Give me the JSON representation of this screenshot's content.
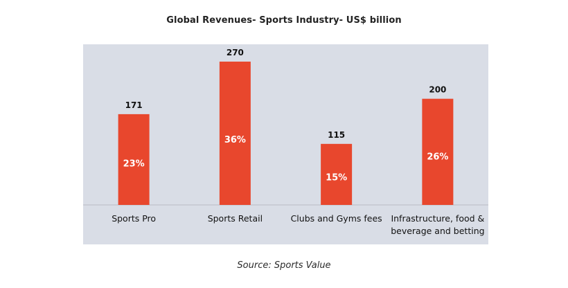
{
  "chart_data": {
    "type": "bar",
    "title": "Global Revenues- Sports Industry- US$ billion",
    "categories": [
      [
        "Sports Pro"
      ],
      [
        "Sports Retail"
      ],
      [
        "Clubs and Gyms fees"
      ],
      [
        "Infrastructure, food &",
        "beverage and betting"
      ]
    ],
    "values": [
      171,
      270,
      115,
      200
    ],
    "value_labels": [
      "171",
      "270",
      "115",
      "200"
    ],
    "percent_labels": [
      "23%",
      "36%",
      "15%",
      "26%"
    ],
    "xlabel": "",
    "ylabel": "",
    "ylim": [
      0,
      300
    ],
    "grid": false,
    "legend": "none"
  },
  "colors": {
    "plot_background": "#d9dde6",
    "bar": "#e8472d",
    "axis": "#b9bcc4",
    "value_label": "#111111",
    "percent_label": "#ffffff",
    "category_label": "#111111"
  },
  "footer": {
    "source": "Source: Sports Value"
  }
}
